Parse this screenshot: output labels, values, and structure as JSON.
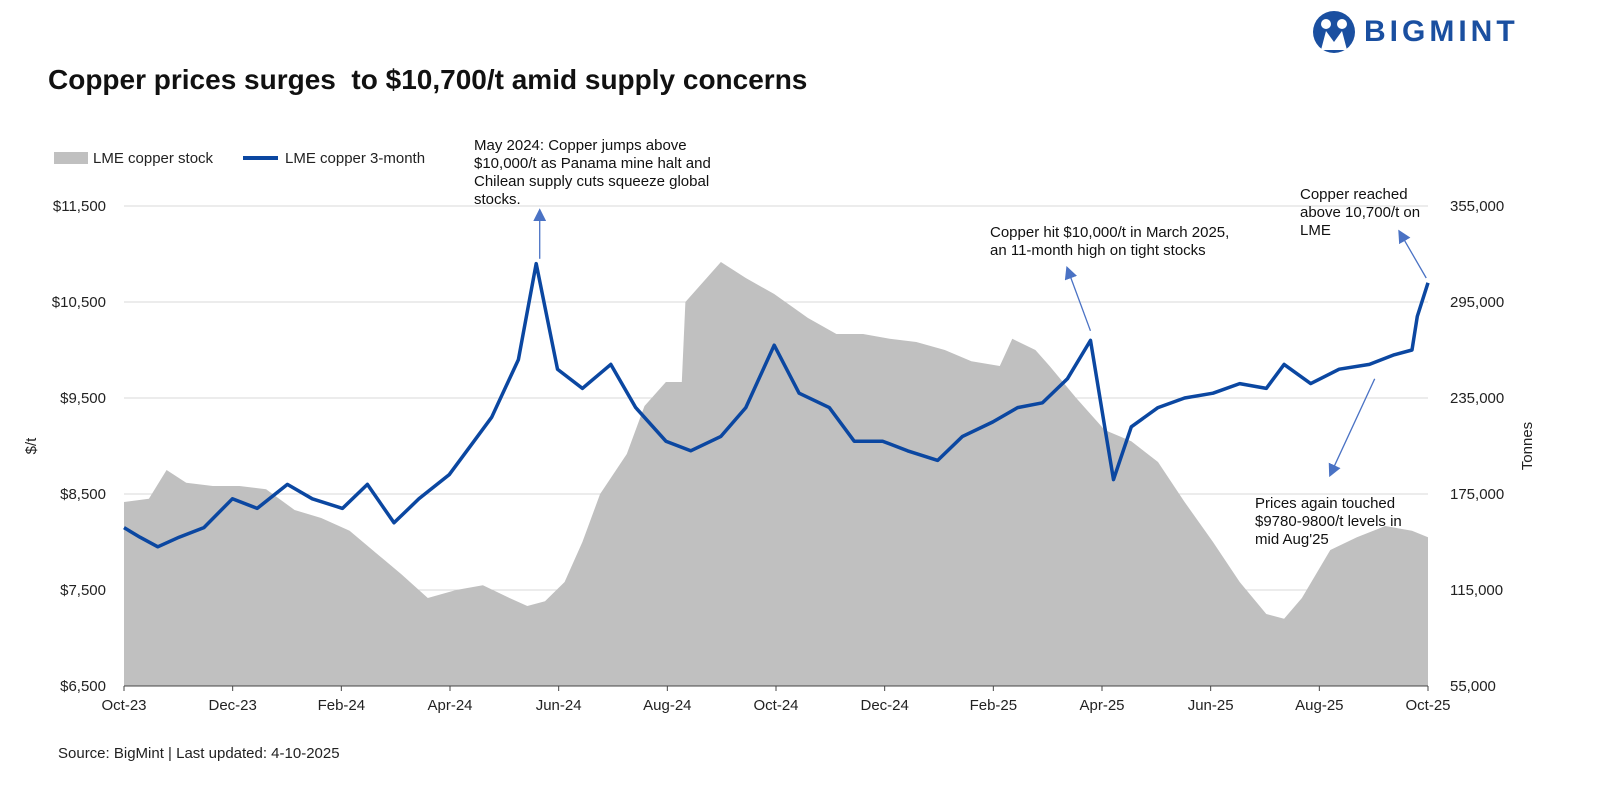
{
  "brand": {
    "name": "BIGMINT",
    "color": "#1a4fa0"
  },
  "title": "Copper prices surges  to $10,700/t amid supply concerns",
  "source": "Source: BigMint | Last updated: 4-10-2025",
  "colors": {
    "stock_fill": "#c0c0c0",
    "price_line": "#0b47a1",
    "annotation_arrow": "#4a72c4",
    "grid": "#d9d9d9"
  },
  "chart_data": {
    "type": "line",
    "legend_position": "top-left",
    "grid": true,
    "x_ticks": [
      "Oct-23",
      "Dec-23",
      "Feb-24",
      "Apr-24",
      "Jun-24",
      "Aug-24",
      "Oct-24",
      "Dec-24",
      "Feb-25",
      "Apr-25",
      "Jun-25",
      "Aug-25",
      "Oct-25"
    ],
    "x_range": [
      "2023-10-01",
      "2025-10-04"
    ],
    "y_left": {
      "label": "$/t",
      "range": [
        6500,
        11500
      ],
      "ticks": [
        "$6,500",
        "$7,500",
        "$8,500",
        "$9,500",
        "$10,500",
        "$11,500"
      ]
    },
    "y_right": {
      "label": "Tonnes",
      "range": [
        55000,
        355000
      ],
      "ticks": [
        "55,000",
        "115,000",
        "175,000",
        "235,000",
        "295,000",
        "355,000"
      ]
    },
    "series": [
      {
        "name": "LME copper stock",
        "type": "area",
        "axis": "right",
        "points": [
          [
            "2023-10-01",
            170000
          ],
          [
            "2023-10-15",
            172000
          ],
          [
            "2023-10-25",
            190000
          ],
          [
            "2023-11-05",
            182000
          ],
          [
            "2023-11-20",
            180000
          ],
          [
            "2023-12-05",
            180000
          ],
          [
            "2023-12-20",
            178000
          ],
          [
            "2024-01-05",
            165000
          ],
          [
            "2024-01-20",
            160000
          ],
          [
            "2024-02-05",
            152000
          ],
          [
            "2024-02-20",
            138000
          ],
          [
            "2024-03-05",
            125000
          ],
          [
            "2024-03-20",
            110000
          ],
          [
            "2024-04-05",
            115000
          ],
          [
            "2024-04-20",
            118000
          ],
          [
            "2024-05-05",
            110000
          ],
          [
            "2024-05-15",
            105000
          ],
          [
            "2024-05-25",
            108000
          ],
          [
            "2024-06-05",
            120000
          ],
          [
            "2024-06-15",
            145000
          ],
          [
            "2024-06-25",
            175000
          ],
          [
            "2024-07-10",
            200000
          ],
          [
            "2024-07-20",
            230000
          ],
          [
            "2024-08-01",
            245000
          ],
          [
            "2024-08-10",
            245000
          ],
          [
            "2024-08-12",
            295000
          ],
          [
            "2024-08-20",
            305000
          ],
          [
            "2024-09-01",
            320000
          ],
          [
            "2024-09-15",
            310000
          ],
          [
            "2024-10-01",
            300000
          ],
          [
            "2024-10-20",
            285000
          ],
          [
            "2024-11-05",
            275000
          ],
          [
            "2024-11-20",
            275000
          ],
          [
            "2024-12-05",
            272000
          ],
          [
            "2024-12-20",
            270000
          ],
          [
            "2025-01-05",
            265000
          ],
          [
            "2025-01-20",
            258000
          ],
          [
            "2025-02-05",
            255000
          ],
          [
            "2025-02-12",
            272000
          ],
          [
            "2025-02-25",
            265000
          ],
          [
            "2025-03-05",
            255000
          ],
          [
            "2025-03-20",
            235000
          ],
          [
            "2025-04-05",
            215000
          ],
          [
            "2025-04-20",
            208000
          ],
          [
            "2025-05-05",
            195000
          ],
          [
            "2025-05-20",
            170000
          ],
          [
            "2025-06-05",
            145000
          ],
          [
            "2025-06-20",
            120000
          ],
          [
            "2025-07-05",
            100000
          ],
          [
            "2025-07-15",
            97000
          ],
          [
            "2025-07-25",
            110000
          ],
          [
            "2025-08-10",
            140000
          ],
          [
            "2025-08-25",
            148000
          ],
          [
            "2025-09-10",
            155000
          ],
          [
            "2025-09-25",
            152000
          ],
          [
            "2025-10-04",
            148000
          ]
        ]
      },
      {
        "name": "LME copper 3-month",
        "type": "line",
        "axis": "left",
        "points": [
          [
            "2023-10-01",
            8150
          ],
          [
            "2023-10-10",
            8050
          ],
          [
            "2023-10-20",
            7950
          ],
          [
            "2023-11-01",
            8050
          ],
          [
            "2023-11-15",
            8150
          ],
          [
            "2023-12-01",
            8450
          ],
          [
            "2023-12-15",
            8350
          ],
          [
            "2024-01-01",
            8600
          ],
          [
            "2024-01-15",
            8450
          ],
          [
            "2024-02-01",
            8350
          ],
          [
            "2024-02-15",
            8600
          ],
          [
            "2024-03-01",
            8200
          ],
          [
            "2024-03-15",
            8450
          ],
          [
            "2024-04-01",
            8700
          ],
          [
            "2024-04-15",
            9050
          ],
          [
            "2024-04-25",
            9300
          ],
          [
            "2024-05-10",
            9900
          ],
          [
            "2024-05-20",
            10900
          ],
          [
            "2024-06-01",
            9800
          ],
          [
            "2024-06-15",
            9600
          ],
          [
            "2024-07-01",
            9850
          ],
          [
            "2024-07-15",
            9400
          ],
          [
            "2024-08-01",
            9050
          ],
          [
            "2024-08-15",
            8950
          ],
          [
            "2024-09-01",
            9100
          ],
          [
            "2024-09-15",
            9400
          ],
          [
            "2024-10-01",
            10050
          ],
          [
            "2024-10-15",
            9550
          ],
          [
            "2024-11-01",
            9400
          ],
          [
            "2024-11-15",
            9050
          ],
          [
            "2024-12-01",
            9050
          ],
          [
            "2024-12-15",
            8950
          ],
          [
            "2025-01-01",
            8850
          ],
          [
            "2025-01-15",
            9100
          ],
          [
            "2025-02-01",
            9250
          ],
          [
            "2025-02-15",
            9400
          ],
          [
            "2025-03-01",
            9450
          ],
          [
            "2025-03-15",
            9700
          ],
          [
            "2025-03-28",
            10100
          ],
          [
            "2025-04-05",
            9200
          ],
          [
            "2025-04-10",
            8650
          ],
          [
            "2025-04-20",
            9200
          ],
          [
            "2025-05-05",
            9400
          ],
          [
            "2025-05-20",
            9500
          ],
          [
            "2025-06-05",
            9550
          ],
          [
            "2025-06-20",
            9650
          ],
          [
            "2025-07-05",
            9600
          ],
          [
            "2025-07-15",
            9850
          ],
          [
            "2025-07-30",
            9650
          ],
          [
            "2025-08-15",
            9800
          ],
          [
            "2025-09-01",
            9850
          ],
          [
            "2025-09-15",
            9950
          ],
          [
            "2025-09-25",
            10000
          ],
          [
            "2025-09-28",
            10350
          ],
          [
            "2025-10-04",
            10700
          ]
        ]
      }
    ],
    "annotations": [
      {
        "text": [
          "May 2024: Copper jumps above",
          "$10,000/t as Panama mine halt and",
          "Chilean supply cuts squeeze global",
          "stocks."
        ],
        "arrow_from": [
          "2024-05-22",
          10950
        ],
        "arrow_to": [
          "2024-05-22",
          11450
        ]
      },
      {
        "text": [
          "Copper hit $10,000/t in March 2025,",
          "an 11-month high on tight stocks"
        ],
        "arrow_from": [
          "2025-03-28",
          10200
        ],
        "arrow_to": [
          "2025-03-15",
          10850
        ]
      },
      {
        "text": [
          "Copper reached",
          "above 10,700/t on",
          "LME"
        ],
        "arrow_from": [
          "2025-10-03",
          10750
        ],
        "arrow_to": [
          "2025-09-18",
          11230
        ]
      },
      {
        "text": [
          "Prices again touched",
          "$9780-9800/t levels in",
          "mid Aug'25"
        ],
        "arrow_from": [
          "2025-09-04",
          9700
        ],
        "arrow_to": [
          "2025-08-10",
          8700
        ]
      }
    ]
  }
}
